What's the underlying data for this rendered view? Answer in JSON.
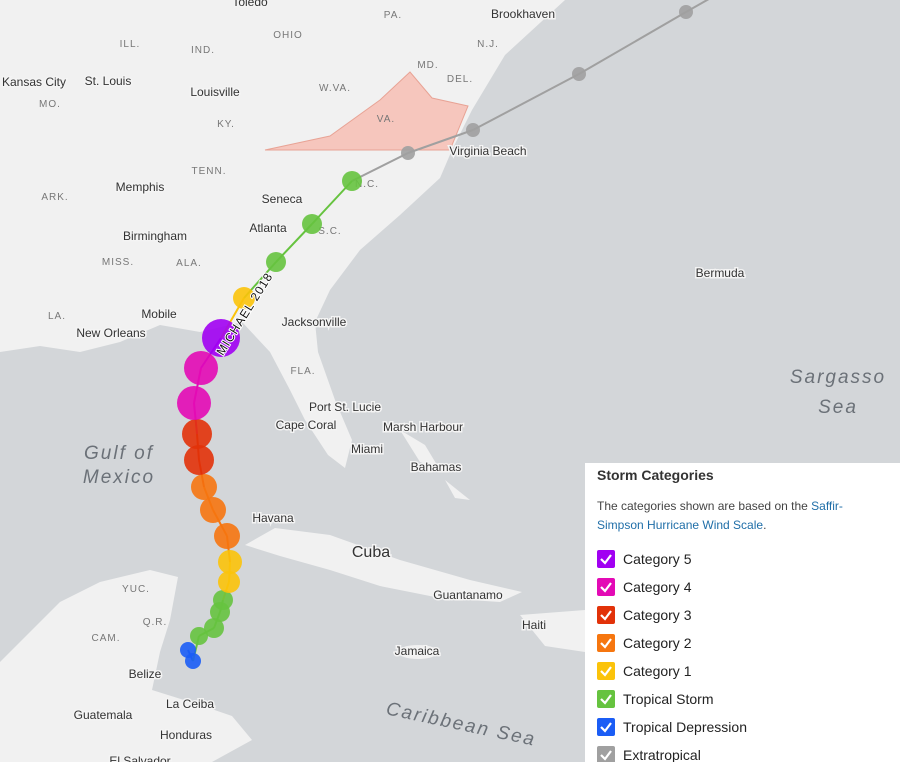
{
  "map": {
    "labels": [
      "Toledo",
      "PA.",
      "Brookhaven",
      "N.J.",
      "ILL.",
      "IND.",
      "OHIO",
      "MD.",
      "DEL.",
      "Kansas City",
      "St. Louis",
      "MO.",
      "Louisville",
      "W.VA.",
      "KY.",
      "VA.",
      "Virginia Beach",
      "TENN.",
      "Memphis",
      "N.C.",
      "ARK.",
      "Seneca",
      "Birmingham",
      "Atlanta",
      "S.C.",
      "MISS.",
      "ALA.",
      "Bermuda",
      "Mobile",
      "LA.",
      "Jacksonville",
      "New Orleans",
      "FLA.",
      "Port St. Lucie",
      "Cape Coral",
      "Marsh Harbour",
      "Miami",
      "Bahamas",
      "Havana",
      "Cuba",
      "YUC.",
      "Q.R.",
      "CAM.",
      "Guantanamo",
      "Haiti",
      "Jamaica",
      "Belize",
      "Guatemala",
      "La Ceiba",
      "Honduras",
      "El Salvador"
    ],
    "water_labels": [
      "Sargasso",
      "Sea",
      "Gulf of",
      "Mexico",
      "Caribbean Sea"
    ],
    "track_label": "MICHAEL 2018"
  },
  "legend": {
    "title": "Storm Categories",
    "description": {
      "text": "The categories shown are based on the ",
      "link": "Saffir-Simpson Hurricane Wind Scale",
      "end": "."
    },
    "items": [
      {
        "name": "Category 5",
        "color": "#a100f2"
      },
      {
        "name": "Category 4",
        "color": "#e30ab5"
      },
      {
        "name": "Category 3",
        "color": "#e23209"
      },
      {
        "name": "Category 2",
        "color": "#f6760f"
      },
      {
        "name": "Category 1",
        "color": "#fbc30a"
      },
      {
        "name": "Tropical Storm",
        "color": "#66c33f"
      },
      {
        "name": "Tropical Depression",
        "color": "#1b5df5"
      },
      {
        "name": "Extratropical",
        "color": "#a0a0a0"
      }
    ]
  }
}
